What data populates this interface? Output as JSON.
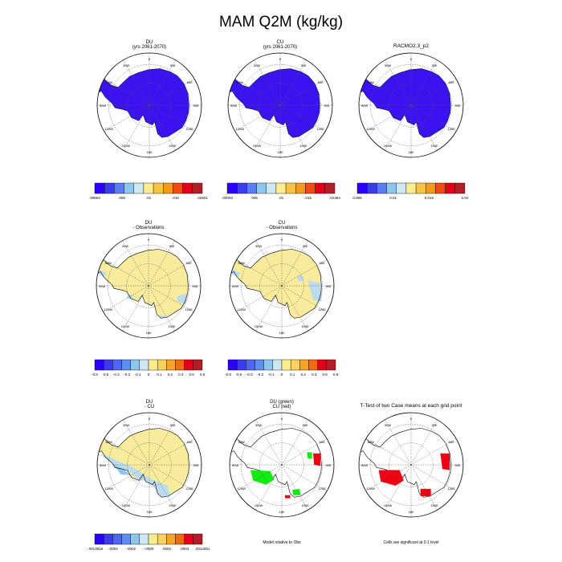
{
  "title": "MAM Q2M (kg/kg)",
  "colors": {
    "antarctica_flat": "#3a14f0",
    "land_yellow": "#f8ec9c",
    "light_blue": "#bcdcee",
    "mid_blue": "#8cc6ea",
    "green": "#10ee10",
    "red": "#f00010",
    "coast": "#000000"
  },
  "palettes": {
    "abs": [
      "#2a00ff",
      "#3b3bef",
      "#5a7df2",
      "#8cc6ea",
      "#cfe7f3",
      "#fbec8e",
      "#f6c343",
      "#f79a1c",
      "#f24a12",
      "#e0001a",
      "#b21e28"
    ],
    "diff": [
      "#2a00ff",
      "#3b3bef",
      "#4f66f2",
      "#5e8ff0",
      "#8cc6ea",
      "#cfe7f3",
      "#fbec8e",
      "#f8d162",
      "#f7a42a",
      "#f06a12",
      "#e0001a",
      "#b21e28"
    ]
  },
  "longitude_labels": [
    "0",
    "30E",
    "60E",
    "90E",
    "120E",
    "150E",
    "180",
    "150W",
    "120W",
    "90W",
    "60W",
    "30W"
  ],
  "panels": [
    {
      "id": "du-2061-2070",
      "title": [
        "DU",
        "(yrs 2061-2070)"
      ],
      "fill": "flat",
      "colorbar": {
        "palette": "abs",
        "labels": [
          ".00004",
          ".005",
          ".01",
          ".015",
          ".02501"
        ]
      }
    },
    {
      "id": "cu-2061-2070",
      "title": [
        "CU",
        "(yrs 2061-2070)"
      ],
      "fill": "flat",
      "colorbar": {
        "palette": "abs",
        "labels": [
          ".00003",
          ".005",
          ".01",
          ".015",
          ".02484"
        ]
      }
    },
    {
      "id": "racmo",
      "title": [
        "RACMO2.3_p2"
      ],
      "fill": "flat",
      "colorbar": {
        "palette": "abs",
        "labels": [
          "0.005",
          "0.01",
          "0.015",
          "0.02"
        ]
      }
    },
    {
      "id": "du-minus-obs",
      "title": [
        "DU",
        "- Observations"
      ],
      "fill": "diff",
      "colorbar": {
        "palette": "diff",
        "labels": [
          "-0.8",
          "-0.5",
          "-0.3",
          "-0.2",
          "-0.1",
          "0",
          "0.1",
          "0.2",
          "0.3",
          "0.5",
          "0.8"
        ]
      }
    },
    {
      "id": "cu-minus-obs",
      "title": [
        "CU",
        "- Observations"
      ],
      "fill": "diff2",
      "colorbar": {
        "palette": "diff",
        "labels": [
          "-0.8",
          "-0.5",
          "-0.3",
          "-0.2",
          "-0.1",
          "0",
          "0.1",
          "0.2",
          "0.3",
          "0.5",
          "0.8"
        ]
      }
    },
    {
      "id": "du-minus-cu",
      "title": [
        "DU",
        "- CU"
      ],
      "fill": "ducu",
      "colorbar": {
        "palette": "diff",
        "labels": [
          "-.0013916",
          "-.0004",
          "-.0002",
          "-.0000",
          ".0002",
          ".0004",
          ".0014351"
        ]
      }
    },
    {
      "id": "du-cu-relative",
      "title": [
        "DU (green)",
        "CU (red)"
      ],
      "fill": "greenred",
      "footer": "Model relative to Obs"
    },
    {
      "id": "ttest",
      "title": [
        "T-Test of two Case means at each grid point"
      ],
      "fill": "redonly",
      "footer": "Cells are significant at 0.1 level"
    }
  ],
  "chart_data": {
    "type": "heatmap",
    "title": "MAM Q2M (kg/kg)",
    "projection": "south polar stereographic",
    "panels": [
      {
        "name": "DU (yrs 2061-2070)",
        "range": [
          4e-05,
          0.02501
        ]
      },
      {
        "name": "CU (yrs 2061-2070)",
        "range": [
          3e-05,
          0.02484
        ]
      },
      {
        "name": "RACMO2.3_p2",
        "ticks": [
          0.005,
          0.01,
          0.015,
          0.02
        ]
      },
      {
        "name": "DU - Observations",
        "ticks": [
          -0.8,
          -0.5,
          -0.3,
          -0.2,
          -0.1,
          0,
          0.1,
          0.2,
          0.3,
          0.5,
          0.8
        ]
      },
      {
        "name": "CU - Observations",
        "ticks": [
          -0.8,
          -0.5,
          -0.3,
          -0.2,
          -0.1,
          0,
          0.1,
          0.2,
          0.3,
          0.5,
          0.8
        ]
      },
      {
        "name": "DU - CU",
        "range": [
          -0.0013916,
          0.0014351
        ]
      },
      {
        "name": "DU (green) CU (red)",
        "footer": "Model relative to Obs"
      },
      {
        "name": "T-Test of two Case means at each grid point",
        "footer": "Cells are significant at 0.1 level"
      }
    ]
  }
}
